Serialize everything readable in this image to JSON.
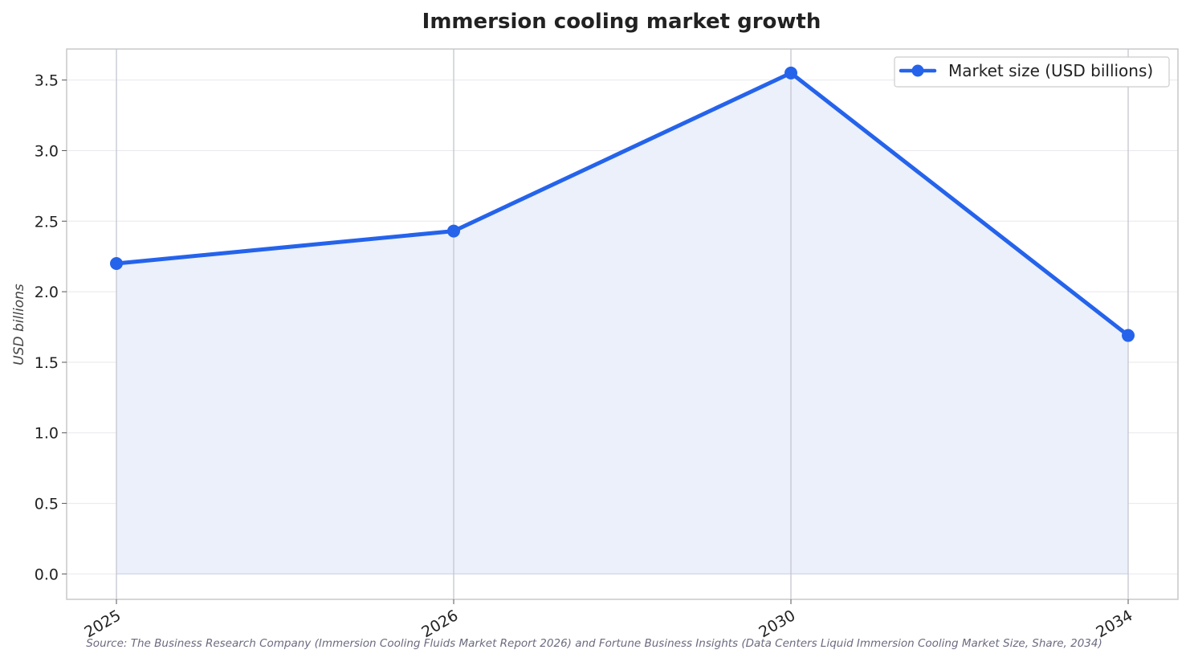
{
  "chart_data": {
    "type": "area",
    "title": "Immersion cooling market growth",
    "xlabel": "",
    "ylabel": "USD billions",
    "categories": [
      "2025",
      "2026",
      "2030",
      "2034"
    ],
    "series": [
      {
        "name": "Market size (USD billions)",
        "values": [
          2.2,
          2.43,
          3.55,
          1.69
        ],
        "color": "#2563eb",
        "fill_color": "#ebf0fb"
      }
    ],
    "yticks": [
      "0.0",
      "0.5",
      "1.0",
      "1.5",
      "2.0",
      "2.5",
      "3.0",
      "3.5"
    ],
    "ylim": [
      -0.18,
      3.72
    ],
    "grid": true,
    "legend_position": "top-right",
    "source": "Source: The Business Research Company (Immersion Cooling Fluids Market Report 2026) and Fortune Business Insights (Data Centers Liquid Immersion Cooling Market Size, Share, 2034)"
  }
}
